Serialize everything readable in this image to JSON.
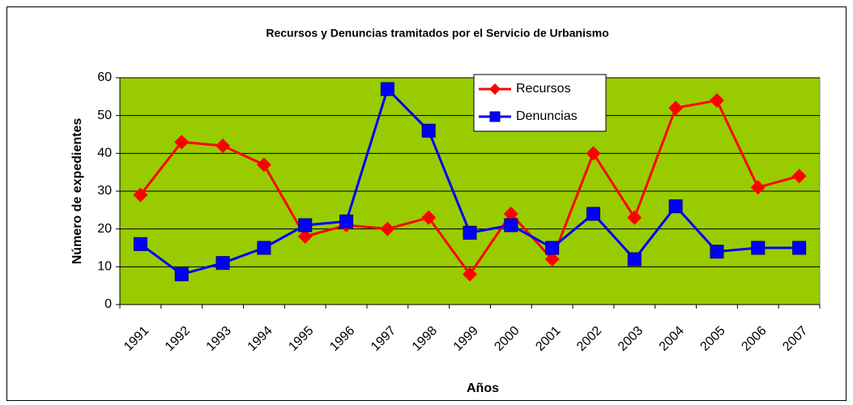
{
  "chart_data": {
    "type": "line",
    "title": "Recursos y Denuncias tramitados por el Servicio de Urbanismo",
    "x_label": "Años",
    "y_label": "Número de expedientes",
    "categories": [
      "1991",
      "1992",
      "1993",
      "1994",
      "1995",
      "1996",
      "1997",
      "1998",
      "1999",
      "2000",
      "2001",
      "2002",
      "2003",
      "2004",
      "2005",
      "2006",
      "2007"
    ],
    "series": [
      {
        "name": "Recursos",
        "color": "#ff0000",
        "marker": "diamond",
        "values": [
          29,
          43,
          42,
          37,
          18,
          21,
          20,
          23,
          8,
          24,
          12,
          40,
          23,
          52,
          54,
          31,
          34
        ]
      },
      {
        "name": "Denuncias",
        "color": "#0000ff",
        "marker": "square",
        "values": [
          16,
          8,
          11,
          15,
          21,
          22,
          57,
          46,
          19,
          21,
          15,
          24,
          12,
          26,
          14,
          15,
          15
        ]
      }
    ],
    "ylim": [
      0,
      60
    ],
    "yticks": [
      0,
      10,
      20,
      30,
      40,
      50,
      60
    ],
    "grid": true,
    "plot_background": "#99cc00",
    "legend_position": "top"
  }
}
